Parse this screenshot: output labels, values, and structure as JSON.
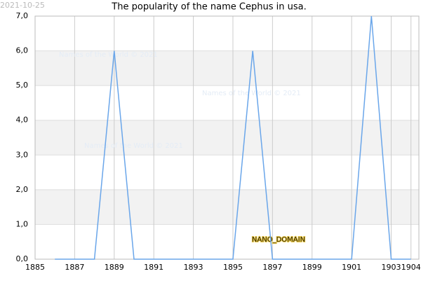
{
  "chart_data": {
    "type": "line",
    "title": "The popularity of the name Cephus in usa.",
    "date": "2021-10-25",
    "watermarks": [
      "Names of the World © 2021",
      "Names of the World © 2021",
      "Names of the World © 2021"
    ],
    "domain_label": "NANO_DOMAIN",
    "x": [
      1886,
      1887,
      1888,
      1889,
      1890,
      1891,
      1892,
      1893,
      1894,
      1895,
      1896,
      1897,
      1898,
      1899,
      1900,
      1901,
      1902,
      1903,
      1904
    ],
    "series": [
      {
        "color": "#6aa6ea",
        "values": [
          0,
          0,
          0,
          6,
          0,
          0,
          0,
          0,
          0,
          0,
          6,
          0,
          0,
          0,
          0,
          0,
          7,
          0,
          0
        ]
      }
    ],
    "xlim": [
      1885,
      1904.4
    ],
    "ylim": [
      0,
      7
    ],
    "xticks": [
      1885,
      1887,
      1889,
      1891,
      1893,
      1895,
      1897,
      1899,
      1901,
      1903,
      1904
    ],
    "yticks": [
      {
        "value": 0,
        "label": "0,0"
      },
      {
        "value": 1,
        "label": "1,0"
      },
      {
        "value": 2,
        "label": "2,0"
      },
      {
        "value": 3,
        "label": "3,0"
      },
      {
        "value": 4,
        "label": "4,0"
      },
      {
        "value": 5,
        "label": "5,0"
      },
      {
        "value": 6,
        "label": "6,0"
      },
      {
        "value": 7,
        "label": "7,0"
      }
    ],
    "grid": true
  }
}
